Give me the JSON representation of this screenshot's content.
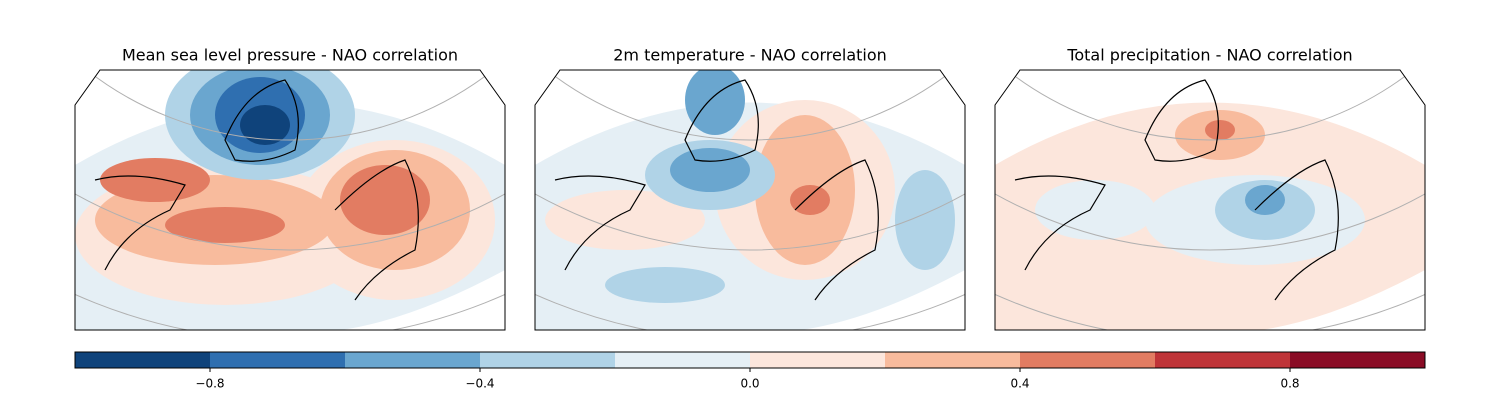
{
  "panels": [
    {
      "title": "Mean sea level pressure - NAO correlation"
    },
    {
      "title": "2m temperature - NAO correlation"
    },
    {
      "title": "Total precipitation - NAO correlation"
    }
  ],
  "colorbar": {
    "lim": [
      -1,
      1
    ],
    "bounds": [
      -1,
      -0.8,
      -0.6,
      -0.4,
      -0.2,
      0,
      0.2,
      0.4,
      0.6,
      0.8,
      1
    ],
    "colors": [
      "#0f437b",
      "#2f6fb0",
      "#6aa6cf",
      "#b0d3e7",
      "#e5eff5",
      "#fce6dc",
      "#f8bb9d",
      "#e27c62",
      "#bf3438",
      "#8a0c25"
    ],
    "ticks": [
      {
        "value": -0.8,
        "label": "−0.8"
      },
      {
        "value": -0.4,
        "label": "−0.4"
      },
      {
        "value": 0,
        "label": "0.0"
      },
      0.4,
      0.8
    ]
  }
}
